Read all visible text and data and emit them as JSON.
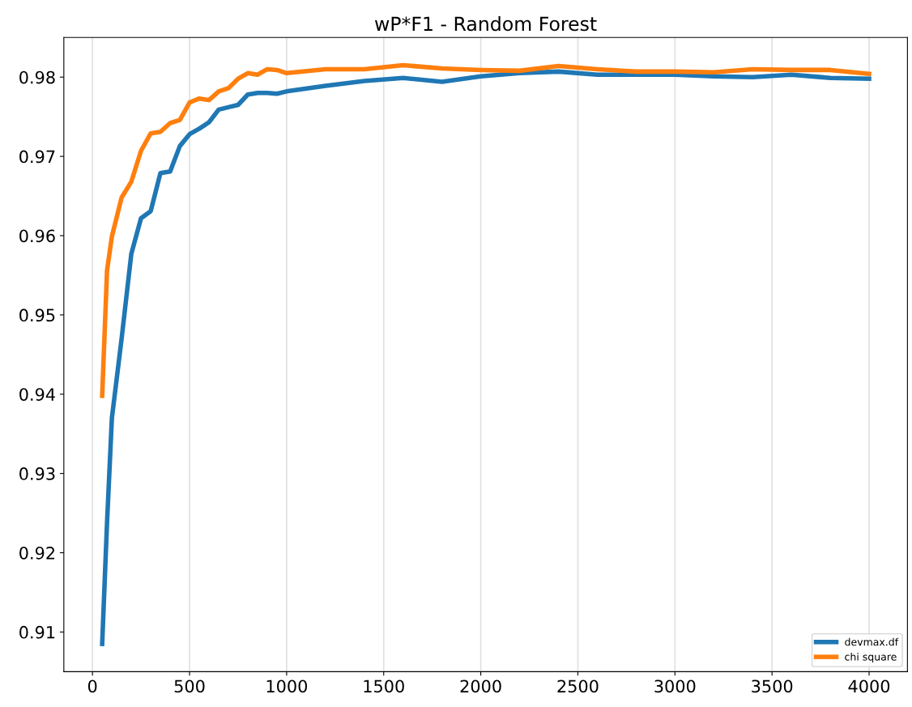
{
  "chart_data": {
    "type": "line",
    "title": "wP*F1 - Random Forest",
    "xlim": [
      -147.5,
      4197.5
    ],
    "xticks": [
      0,
      500,
      1000,
      1500,
      2000,
      2500,
      3000,
      3500,
      4000
    ],
    "ylim": [
      0.905,
      0.985
    ],
    "yticks": [
      0.91,
      0.92,
      0.93,
      0.94,
      0.95,
      0.96,
      0.97,
      0.98
    ],
    "grid": "x",
    "legend": "bottom right",
    "line_style": "solid",
    "x": [
      50,
      75,
      100,
      150,
      200,
      250,
      300,
      350,
      400,
      450,
      500,
      550,
      600,
      650,
      700,
      750,
      800,
      850,
      900,
      950,
      1000,
      1200,
      1400,
      1600,
      1800,
      2000,
      2200,
      2400,
      2600,
      2800,
      3000,
      3200,
      3400,
      3600,
      3800,
      4000
    ],
    "series": [
      {
        "name": "devmax.df",
        "color": "#1f77b4",
        "values": [
          0.9085,
          0.9238,
          0.937,
          0.947,
          0.9577,
          0.9622,
          0.9631,
          0.9679,
          0.9681,
          0.9713,
          0.9728,
          0.9735,
          0.9743,
          0.9759,
          0.9762,
          0.9765,
          0.9778,
          0.978,
          0.978,
          0.9779,
          0.9782,
          0.9789,
          0.9795,
          0.9799,
          0.9794,
          0.9801,
          0.9805,
          0.9807,
          0.9803,
          0.9803,
          0.9803,
          0.9801,
          0.98,
          0.9803,
          0.9799,
          0.9798
        ]
      },
      {
        "name": "chi square",
        "color": "#ff7f0e",
        "values": [
          0.9398,
          0.9556,
          0.9599,
          0.9648,
          0.9668,
          0.9707,
          0.9729,
          0.9731,
          0.9742,
          0.9746,
          0.9768,
          0.9773,
          0.9771,
          0.9782,
          0.9786,
          0.9798,
          0.9805,
          0.9803,
          0.981,
          0.9809,
          0.9805,
          0.981,
          0.981,
          0.9815,
          0.9811,
          0.9809,
          0.9808,
          0.9814,
          0.981,
          0.9807,
          0.9807,
          0.9806,
          0.981,
          0.9809,
          0.9809,
          0.9804
        ]
      }
    ]
  }
}
